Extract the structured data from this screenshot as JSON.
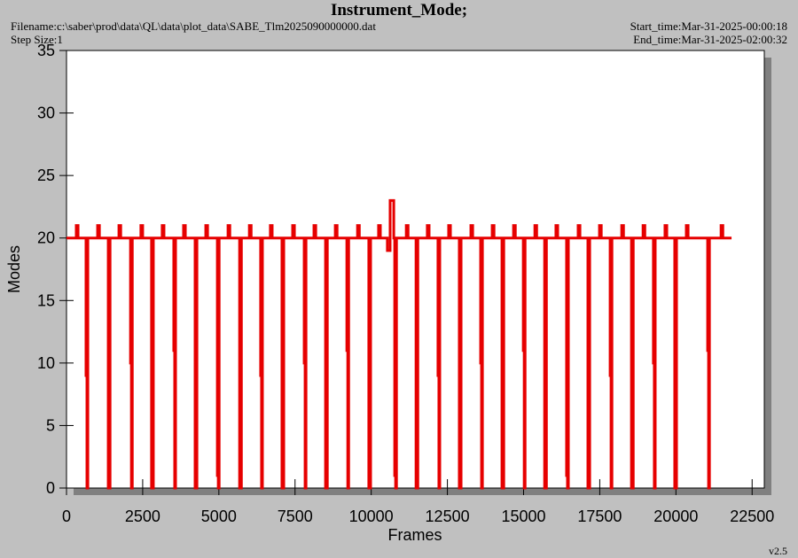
{
  "chart_data": {
    "type": "line",
    "title": "Instrument_Mode;",
    "filename": "Filename:c:\\saber\\prod\\data\\QL\\data\\plot_data\\SABE_Tlm2025090000000.dat",
    "step_size": "Step Size:1",
    "start_time": "Start_time:Mar-31-2025-00:00:18",
    "end_time": "End_time:Mar-31-2025-02:00:32",
    "version": "v2.5",
    "xlabel": "Frames",
    "ylabel": "Modes",
    "color": "#e60000",
    "xlim": [
      0,
      22900
    ],
    "ylim": [
      0,
      35
    ],
    "xticks": [
      0,
      2500,
      5000,
      7500,
      10000,
      12500,
      15000,
      17500,
      20000,
      22500
    ],
    "yticks": [
      0,
      5,
      10,
      15,
      20,
      25,
      30,
      35
    ],
    "x": [
      0,
      320,
      320,
      380,
      380,
      640,
      640,
      670,
      670,
      700,
      700,
      1020,
      1020,
      1080,
      1080,
      1370,
      1370,
      1430,
      1430,
      1720,
      1720,
      1780,
      1780,
      2100,
      2100,
      2130,
      2130,
      2160,
      2160,
      2440,
      2440,
      2500,
      2500,
      2790,
      2790,
      2850,
      2850,
      3140,
      3140,
      3200,
      3200,
      3520,
      3520,
      3550,
      3550,
      3580,
      3580,
      3840,
      3840,
      3900,
      3900,
      4220,
      4220,
      4280,
      4280,
      4570,
      4570,
      4630,
      4630,
      4950,
      4950,
      4980,
      4980,
      5010,
      5010,
      5300,
      5300,
      5360,
      5360,
      5680,
      5680,
      5740,
      5740,
      6000,
      6000,
      6060,
      6060,
      6370,
      6370,
      6400,
      6400,
      6430,
      6430,
      6690,
      6690,
      6750,
      6750,
      7070,
      7070,
      7130,
      7130,
      7420,
      7420,
      7480,
      7480,
      7800,
      7800,
      7830,
      7830,
      7860,
      7860,
      8120,
      8120,
      8180,
      8180,
      8500,
      8500,
      8560,
      8560,
      8820,
      8820,
      8880,
      8880,
      9200,
      9200,
      9230,
      9230,
      9260,
      9260,
      9550,
      9550,
      9610,
      9610,
      9920,
      9920,
      9980,
      9980,
      10240,
      10240,
      10300,
      10300,
      10530,
      10530,
      10620,
      10620,
      10740,
      10740,
      10770,
      10770,
      10800,
      10800,
      10830,
      10830,
      11150,
      11150,
      11210,
      11210,
      11470,
      11470,
      11530,
      11530,
      11840,
      11840,
      11900,
      11900,
      12190,
      12190,
      12220,
      12220,
      12250,
      12250,
      12540,
      12540,
      12600,
      12600,
      12890,
      12890,
      12950,
      12950,
      13270,
      13270,
      13330,
      13330,
      13590,
      13590,
      13620,
      13620,
      13650,
      13650,
      13970,
      13970,
      14030,
      14030,
      14290,
      14290,
      14350,
      14350,
      14670,
      14670,
      14730,
      14730,
      14990,
      14990,
      15020,
      15020,
      15050,
      15050,
      15370,
      15370,
      15430,
      15430,
      15690,
      15690,
      15750,
      15750,
      16060,
      16060,
      16120,
      16120,
      16410,
      16410,
      16440,
      16440,
      16470,
      16470,
      16790,
      16790,
      16850,
      16850,
      17110,
      17110,
      17170,
      17170,
      17490,
      17490,
      17550,
      17550,
      17840,
      17840,
      17870,
      17870,
      17900,
      17900,
      18220,
      18220,
      18280,
      18280,
      18540,
      18540,
      18600,
      18600,
      18920,
      18920,
      18980,
      18980,
      19260,
      19260,
      19290,
      19290,
      19320,
      19320,
      19640,
      19640,
      19700,
      19700,
      19960,
      19960,
      20020,
      20020,
      20340,
      20340,
      20400,
      20400,
      21040,
      21040,
      21070,
      21070,
      21100,
      21100,
      21480,
      21480,
      21540,
      21540,
      21825
    ],
    "values": [
      20,
      20,
      21,
      21,
      20,
      20,
      9,
      9,
      0,
      0,
      20,
      20,
      21,
      21,
      20,
      20,
      0,
      0,
      20,
      20,
      21,
      21,
      20,
      20,
      10,
      10,
      0,
      0,
      20,
      20,
      21,
      21,
      20,
      20,
      0,
      0,
      20,
      20,
      21,
      21,
      20,
      20,
      11,
      11,
      0,
      0,
      20,
      20,
      21,
      21,
      20,
      20,
      0,
      0,
      20,
      20,
      21,
      21,
      20,
      20,
      1,
      1,
      0,
      0,
      20,
      20,
      21,
      21,
      20,
      20,
      0,
      0,
      20,
      20,
      21,
      21,
      20,
      20,
      9,
      9,
      0,
      0,
      20,
      20,
      21,
      21,
      20,
      20,
      0,
      0,
      20,
      20,
      21,
      21,
      20,
      20,
      10,
      10,
      0,
      0,
      20,
      20,
      21,
      21,
      20,
      20,
      0,
      0,
      20,
      20,
      21,
      21,
      20,
      20,
      11,
      11,
      0,
      0,
      20,
      20,
      21,
      21,
      20,
      20,
      0,
      0,
      20,
      20,
      21,
      21,
      20,
      20,
      19,
      19,
      23,
      23,
      20,
      20,
      1,
      1,
      0,
      0,
      20,
      20,
      21,
      21,
      20,
      20,
      0,
      0,
      20,
      20,
      21,
      21,
      20,
      20,
      9,
      9,
      0,
      0,
      20,
      20,
      21,
      21,
      20,
      20,
      0,
      0,
      20,
      20,
      21,
      21,
      20,
      20,
      10,
      10,
      0,
      0,
      20,
      20,
      21,
      21,
      20,
      20,
      0,
      0,
      20,
      20,
      21,
      21,
      20,
      20,
      11,
      11,
      0,
      0,
      20,
      20,
      21,
      21,
      20,
      20,
      0,
      0,
      20,
      20,
      21,
      21,
      20,
      20,
      1,
      1,
      0,
      0,
      20,
      20,
      21,
      21,
      20,
      20,
      0,
      0,
      20,
      20,
      21,
      21,
      20,
      20,
      9,
      9,
      0,
      0,
      20,
      20,
      21,
      21,
      20,
      20,
      0,
      0,
      20,
      20,
      21,
      21,
      20,
      20,
      10,
      10,
      0,
      0,
      20,
      20,
      21,
      21,
      20,
      20,
      0,
      0,
      20,
      20,
      21,
      21,
      20,
      20,
      11,
      11,
      0,
      0,
      20,
      20,
      21,
      21,
      20,
      20
    ]
  }
}
